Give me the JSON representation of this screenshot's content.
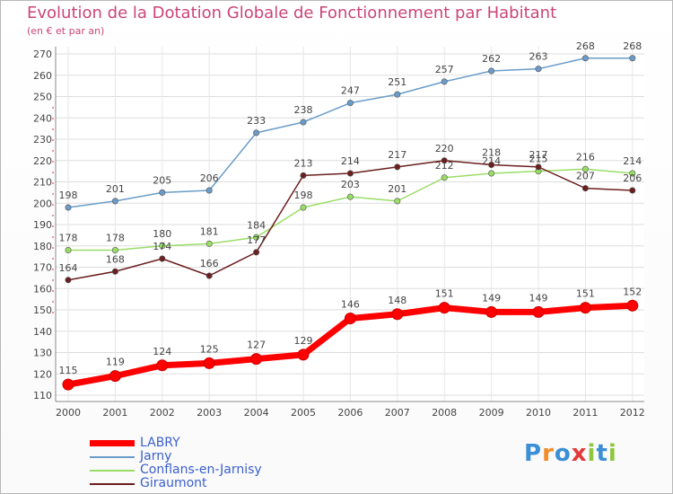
{
  "title": "Evolution de la Dotation Globale de Fonctionnement par Habitant",
  "subtitle": "(en € et par an)",
  "brand": "Proxiti",
  "chart_data": {
    "type": "line",
    "title": "Evolution de la Dotation Globale de Fonctionnement par Habitant",
    "subtitle": "(en € et par an)",
    "xlabel": "",
    "ylabel": "",
    "x": [
      "2000",
      "2001",
      "2002",
      "2003",
      "2004",
      "2005",
      "2006",
      "2007",
      "2008",
      "2009",
      "2010",
      "2011",
      "2012"
    ],
    "yticks": [
      110,
      120,
      130,
      140,
      150,
      160,
      170,
      180,
      190,
      200,
      210,
      220,
      230,
      240,
      250,
      260,
      270
    ],
    "ylim": [
      110,
      270
    ],
    "grid": true,
    "legend_position": "bottom-left",
    "series": [
      {
        "name": "LABRY",
        "color": "#ff0000",
        "values": [
          115,
          119,
          124,
          125,
          127,
          129,
          146,
          148,
          151,
          149,
          149,
          151,
          152
        ]
      },
      {
        "name": "Jarny",
        "color": "#6a9cc9",
        "values": [
          198,
          201,
          205,
          206,
          233,
          238,
          247,
          251,
          257,
          262,
          263,
          268,
          268
        ]
      },
      {
        "name": "Conflans-en-Jarnisy",
        "color": "#99dd66",
        "values": [
          178,
          178,
          180,
          181,
          184,
          198,
          203,
          201,
          212,
          214,
          215,
          216,
          214
        ]
      },
      {
        "name": "Giraumont",
        "color": "#6b1f1f",
        "values": [
          164,
          168,
          174,
          166,
          177,
          213,
          214,
          217,
          220,
          218,
          217,
          207,
          206
        ]
      }
    ]
  }
}
